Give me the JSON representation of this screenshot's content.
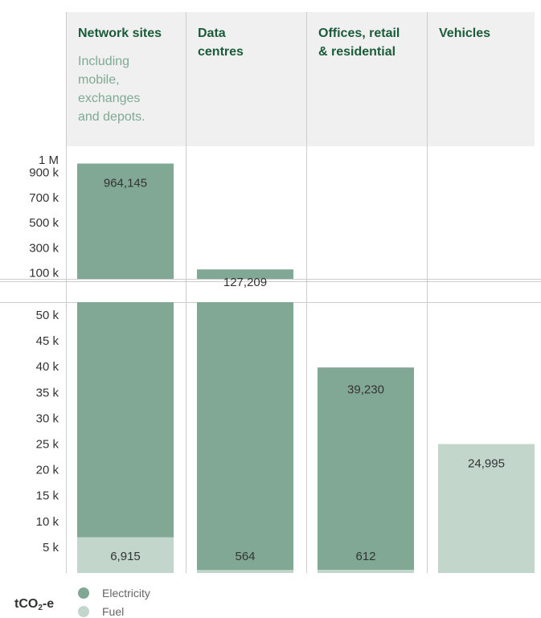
{
  "chart_data": {
    "type": "bar",
    "stacked": true,
    "broken_y_axis": true,
    "unit_label": {
      "main": "tCO",
      "sub": "2",
      "suffix": "-e"
    },
    "categories": [
      {
        "name": "Network sites",
        "lines": [
          "Network sites"
        ],
        "subtitle_lines": [
          "Including",
          "mobile,",
          "exchanges",
          "and depots."
        ]
      },
      {
        "name": "Data centres",
        "lines": [
          "Data",
          "centres"
        ],
        "subtitle_lines": []
      },
      {
        "name": "Offices, retail & residential",
        "lines": [
          "Offices, retail",
          "& residential"
        ],
        "subtitle_lines": []
      },
      {
        "name": "Vehicles",
        "lines": [
          "Vehicles"
        ],
        "subtitle_lines": []
      }
    ],
    "series": [
      {
        "name": "Electricity",
        "color": "#80a895",
        "values": [
          964145,
          127209,
          39230,
          0
        ],
        "labels": [
          "964,145",
          "127,209",
          "39,230",
          ""
        ]
      },
      {
        "name": "Fuel",
        "color": "#c2d6cc",
        "values": [
          6915,
          564,
          612,
          24995
        ],
        "labels": [
          "6,915",
          "564",
          "612",
          "24,995"
        ]
      }
    ],
    "lower_axis": {
      "ylim": [
        0,
        52500
      ],
      "ticks": [
        5000,
        10000,
        15000,
        20000,
        25000,
        30000,
        35000,
        40000,
        45000,
        50000
      ],
      "tick_labels": [
        "5 k",
        "10 k",
        "15 k",
        "20 k",
        "25 k",
        "30 k",
        "35 k",
        "40 k",
        "45 k",
        "50 k"
      ]
    },
    "upper_axis": {
      "ylim": [
        52500,
        1000000
      ],
      "ticks": [
        100000,
        300000,
        500000,
        700000,
        900000,
        1000000
      ],
      "tick_labels": [
        "100 k",
        "300 k",
        "500 k",
        "700 k",
        "900 k",
        "1 M"
      ]
    },
    "legend": {
      "placement": "bottom-left",
      "entries": [
        "Electricity",
        "Fuel"
      ]
    },
    "colors": {
      "title": "#1a5c3a",
      "subtitle": "#7faa94",
      "header_bg": "#f0f0f0",
      "grid": "#cccccc",
      "text": "#333333"
    }
  }
}
